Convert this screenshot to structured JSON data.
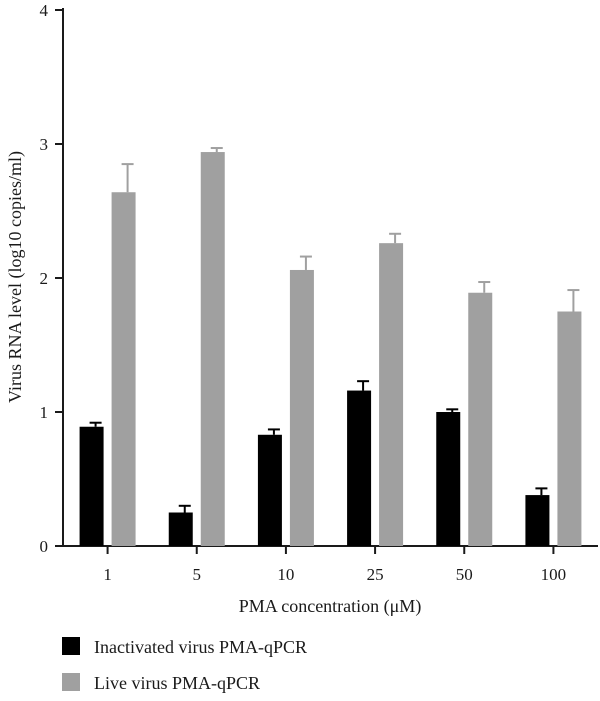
{
  "chart_data": {
    "type": "bar",
    "xlabel": "PMA concentration (μM)",
    "ylabel": "Virus RNA level (log10 copies/ml)",
    "categories": [
      "1",
      "5",
      "10",
      "25",
      "50",
      "100"
    ],
    "ylim": [
      0,
      4
    ],
    "yticks": [
      "0",
      "1",
      "2",
      "3",
      "4"
    ],
    "series": [
      {
        "name": "Inactivated virus PMA-qPCR",
        "color": "#000000",
        "values": [
          0.89,
          0.25,
          0.83,
          1.16,
          1.0,
          0.38
        ],
        "error": [
          0.03,
          0.05,
          0.04,
          0.07,
          0.02,
          0.05
        ]
      },
      {
        "name": "Live virus PMA-qPCR",
        "color": "#a0a0a0",
        "values": [
          2.64,
          2.94,
          2.06,
          2.26,
          1.89,
          1.75
        ],
        "error": [
          0.21,
          0.03,
          0.1,
          0.07,
          0.08,
          0.16
        ]
      }
    ],
    "legend_position": "bottom-left",
    "grid": false
  }
}
